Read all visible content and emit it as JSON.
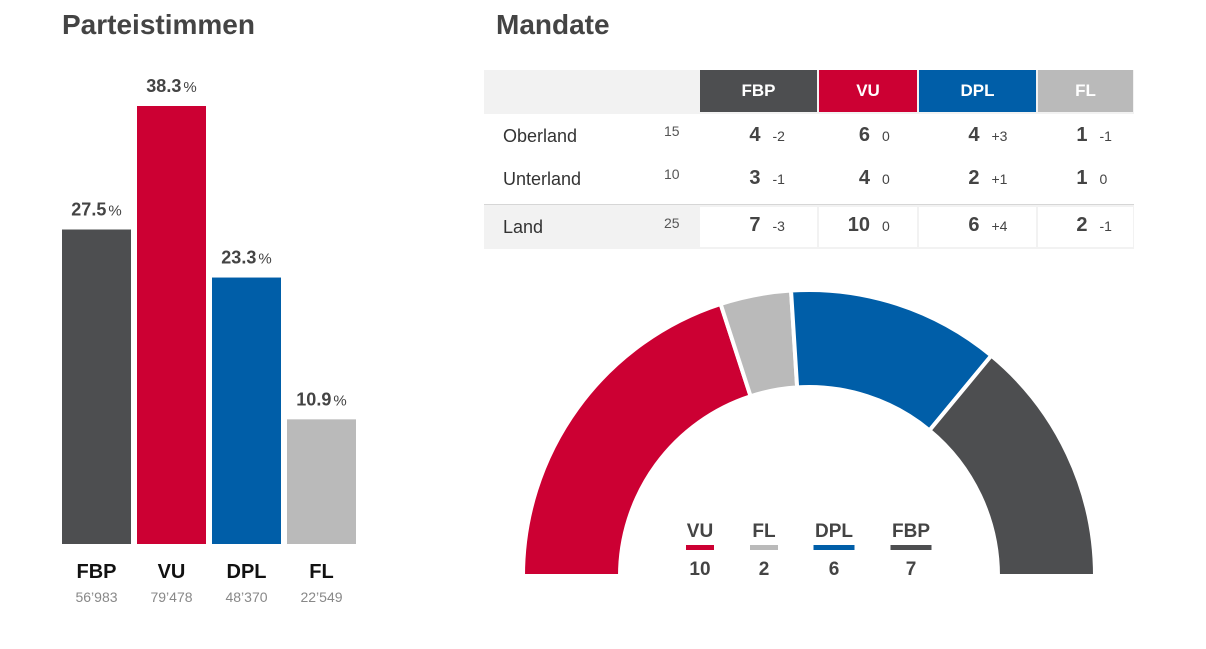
{
  "left_title": "Parteistimmen",
  "right_title": "Mandate",
  "colors": {
    "FBP": "#4d4e50",
    "VU": "#cc0033",
    "DPL": "#005ea8",
    "FL": "#bababa"
  },
  "chart_data": [
    {
      "type": "bar",
      "title": "Parteistimmen",
      "categories": [
        "FBP",
        "VU",
        "DPL",
        "FL"
      ],
      "values": [
        27.5,
        38.3,
        23.3,
        10.9
      ],
      "unit": "%",
      "votes": [
        "56’983",
        "79’478",
        "48’370",
        "22’549"
      ],
      "colors": [
        "#4d4e50",
        "#cc0033",
        "#005ea8",
        "#bababa"
      ]
    },
    {
      "type": "pie",
      "subtype": "hemicycle",
      "title": "Mandate",
      "categories": [
        "VU",
        "FL",
        "DPL",
        "FBP"
      ],
      "values": [
        10,
        2,
        6,
        7
      ],
      "colors": [
        "#cc0033",
        "#bababa",
        "#005ea8",
        "#4d4e50"
      ]
    }
  ],
  "table": {
    "parties": [
      "FBP",
      "VU",
      "DPL",
      "FL"
    ],
    "rows": [
      {
        "label": "Oberland",
        "total": "15",
        "cells": [
          [
            "4",
            "-2"
          ],
          [
            "6",
            "0"
          ],
          [
            "4",
            "+3"
          ],
          [
            "1",
            "-1"
          ]
        ]
      },
      {
        "label": "Unterland",
        "total": "10",
        "cells": [
          [
            "3",
            "-1"
          ],
          [
            "4",
            "0"
          ],
          [
            "2",
            "+1"
          ],
          [
            "1",
            "0"
          ]
        ]
      },
      {
        "label": "Land",
        "total": "25",
        "cells": [
          [
            "7",
            "-3"
          ],
          [
            "10",
            "0"
          ],
          [
            "6",
            "+4"
          ],
          [
            "2",
            "-1"
          ]
        ]
      }
    ]
  },
  "legend": [
    {
      "name": "VU",
      "value": "10"
    },
    {
      "name": "FL",
      "value": "2"
    },
    {
      "name": "DPL",
      "value": "6"
    },
    {
      "name": "FBP",
      "value": "7"
    }
  ]
}
